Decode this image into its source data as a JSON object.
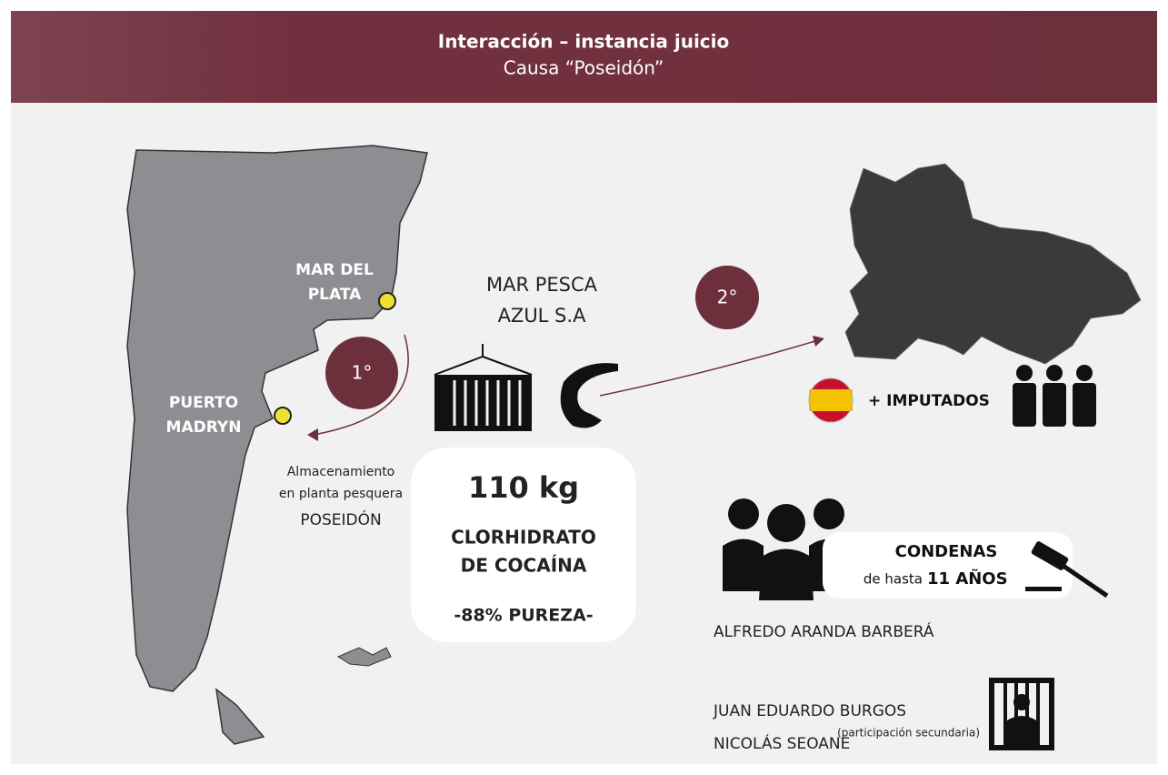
{
  "header": {
    "title": "Interacción – instancia juicio",
    "subtitle": "Causa “Poseidón”"
  },
  "map": {
    "mar_del_plata": [
      "MAR DEL",
      "PLATA"
    ],
    "puerto_madryn": [
      "PUERTO",
      "MADRYN"
    ]
  },
  "steps": [
    "1°",
    "2°"
  ],
  "company": [
    "MAR PESCA",
    "AZUL S.A"
  ],
  "storage": {
    "lines": [
      "Almacenamiento",
      "en planta pesquera"
    ],
    "name": "POSEIDÓN"
  },
  "seizure": {
    "amount": "110 kg",
    "substance": [
      "CLORHIDRATO",
      "DE COCAÍNA"
    ],
    "purity": "-88% PUREZA-"
  },
  "accused": "+ IMPUTADOS",
  "sentences": {
    "title": "CONDENAS",
    "prefix": "de hasta",
    "years": "11 AÑOS"
  },
  "convicted": [
    {
      "name": "ALFREDO ARANDA BARBERÁ"
    },
    {
      "name": "JUAN EDUARDO BURGOS",
      "note": "(participación secundaria)"
    },
    {
      "name": "NICOLÁS SEOANE"
    }
  ]
}
